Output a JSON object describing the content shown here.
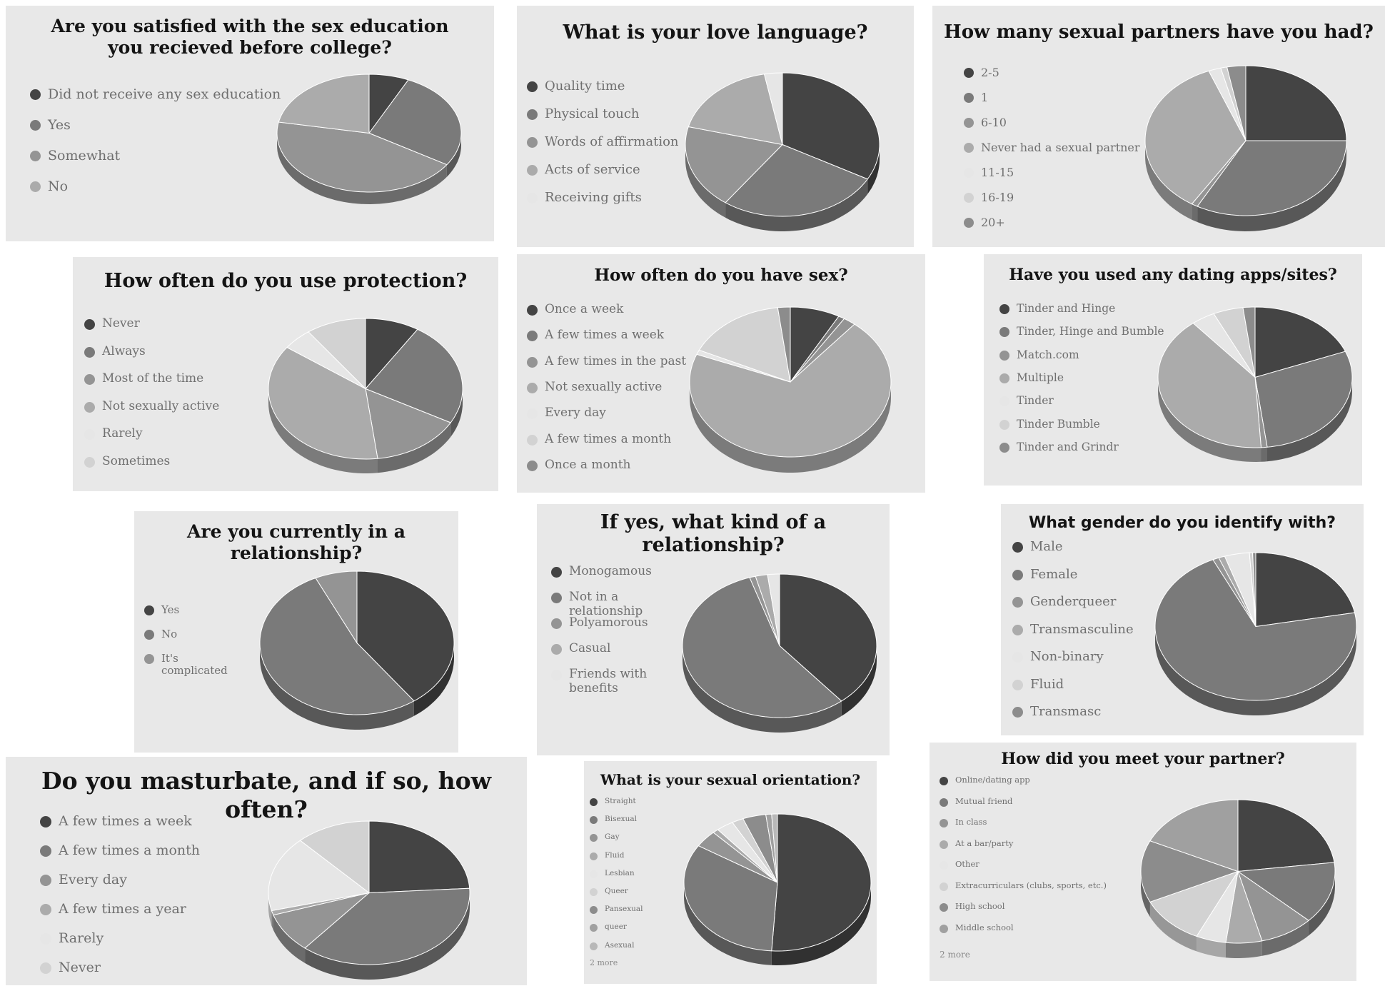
{
  "chart_data": [
    {
      "id": "p0",
      "type": "pie",
      "title": "Are you satisfied with the sex education you recieved before college?",
      "categories": [
        "Did not receive any sex education",
        "Yes",
        "Somewhat",
        "No"
      ],
      "values": [
        7,
        27,
        44,
        22
      ],
      "colors": [
        "#444444",
        "#7a7a7a",
        "#949494",
        "#ababab"
      ]
    },
    {
      "id": "p1",
      "type": "pie",
      "title": "What is your love language?",
      "categories": [
        "Quality time",
        "Physical touch",
        "Words of affirmation",
        "Acts of service",
        "Receiving gifts"
      ],
      "values": [
        33,
        27,
        19,
        18,
        3
      ],
      "colors": [
        "#444444",
        "#7a7a7a",
        "#949494",
        "#ababab",
        "#e6e6e6"
      ]
    },
    {
      "id": "p2",
      "type": "pie",
      "title": "How many sexual partners have you had?",
      "categories": [
        "2-5",
        "1",
        "6-10",
        "Never had a sexual partner",
        "11-15",
        "16-19",
        "20+"
      ],
      "values": [
        25,
        33,
        1,
        35,
        2,
        1,
        3
      ],
      "colors": [
        "#444444",
        "#7a7a7a",
        "#949494",
        "#ababab",
        "#e6e6e6",
        "#d2d2d2",
        "#8c8c8c"
      ]
    },
    {
      "id": "p3",
      "type": "pie",
      "title": "How often do you use protection?",
      "categories": [
        "Never",
        "Always",
        "Most of the time",
        "Not sexually active",
        "Rarely",
        "Sometimes"
      ],
      "values": [
        9,
        24,
        15,
        37,
        5,
        10
      ],
      "colors": [
        "#444444",
        "#7a7a7a",
        "#949494",
        "#ababab",
        "#e6e6e6",
        "#d2d2d2"
      ]
    },
    {
      "id": "p4",
      "type": "pie",
      "title": "How often do you have sex?",
      "categories": [
        "Once a week",
        "A few times a week",
        "A few times in the past",
        "Not sexually active",
        "Every day",
        "A few times a month",
        "Once a month"
      ],
      "values": [
        8,
        1,
        2,
        70,
        1,
        16,
        2
      ],
      "colors": [
        "#444444",
        "#7a7a7a",
        "#949494",
        "#ababab",
        "#e6e6e6",
        "#d2d2d2",
        "#8c8c8c"
      ]
    },
    {
      "id": "p5",
      "type": "pie",
      "title": "Have you used any dating apps/sites?",
      "categories": [
        "Tinder and Hinge",
        "Tinder, Hinge and Bumble",
        "Match.com",
        "Multiple",
        "Tinder",
        "Tinder Bumble",
        "Tinder and Grindr"
      ],
      "values": [
        19,
        29,
        1,
        40,
        4,
        5,
        2
      ],
      "colors": [
        "#444444",
        "#7a7a7a",
        "#949494",
        "#ababab",
        "#e6e6e6",
        "#d2d2d2",
        "#8c8c8c"
      ]
    },
    {
      "id": "p6",
      "type": "pie",
      "title": "Are you currently in a relationship?",
      "categories": [
        "Yes",
        "No",
        "It's complicated"
      ],
      "values": [
        40,
        53,
        7
      ],
      "colors": [
        "#444444",
        "#7a7a7a",
        "#949494"
      ]
    },
    {
      "id": "p7",
      "type": "pie",
      "title": "If yes, what kind of a relationship?",
      "categories": [
        "Monogamous",
        "Not in a relationship",
        "Polyamorous",
        "Casual",
        "Friends with benefits"
      ],
      "values": [
        39,
        56,
        1,
        2,
        2
      ],
      "colors": [
        "#444444",
        "#7a7a7a",
        "#949494",
        "#ababab",
        "#e6e6e6"
      ]
    },
    {
      "id": "p8",
      "type": "pie",
      "title": "What gender do you identify with?",
      "categories": [
        "Male",
        "Female",
        "Genderqueer",
        "Transmasculine",
        "Non-binary",
        "Fluid",
        "Transmasc"
      ],
      "values": [
        22,
        71,
        1,
        1,
        4,
        0.5,
        0.5
      ],
      "colors": [
        "#444444",
        "#7a7a7a",
        "#949494",
        "#ababab",
        "#e6e6e6",
        "#d2d2d2",
        "#8c8c8c"
      ]
    },
    {
      "id": "p9",
      "type": "pie",
      "title": "Do you masturbate, and if so, how often?",
      "categories": [
        "A few times a week",
        "A few times a month",
        "Every day",
        "A few times a year",
        "Rarely",
        "Never"
      ],
      "values": [
        24,
        37,
        9,
        1,
        17,
        12
      ],
      "colors": [
        "#444444",
        "#7a7a7a",
        "#949494",
        "#ababab",
        "#e6e6e6",
        "#d2d2d2"
      ]
    },
    {
      "id": "p10",
      "type": "pie",
      "title": "What is your sexual orientation?",
      "categories": [
        "Straight",
        "Bisexual",
        "Gay",
        "Fluid",
        "Lesbian",
        "Queer",
        "Pansexual",
        "queer",
        "Asexual"
      ],
      "values": [
        51,
        33,
        4,
        1,
        3,
        2,
        4,
        1,
        1
      ],
      "colors": [
        "#444444",
        "#7a7a7a",
        "#949494",
        "#ababab",
        "#e6e6e6",
        "#d2d2d2",
        "#8c8c8c",
        "#a0a0a0",
        "#b8b8b8"
      ],
      "more": "2 more"
    },
    {
      "id": "p11",
      "type": "pie",
      "title": "How did you meet your partner?",
      "categories": [
        "Online/dating app",
        "Mutual friend",
        "In class",
        "At a bar/party",
        "Other",
        "Extracurriculars (clubs, sports, etc.)",
        "High school",
        "Middle school"
      ],
      "values": [
        23,
        14,
        9,
        6,
        5,
        11,
        14,
        18
      ],
      "colors": [
        "#444444",
        "#7a7a7a",
        "#949494",
        "#ababab",
        "#e6e6e6",
        "#d2d2d2",
        "#8c8c8c",
        "#a0a0a0"
      ],
      "more": "2 more"
    }
  ]
}
